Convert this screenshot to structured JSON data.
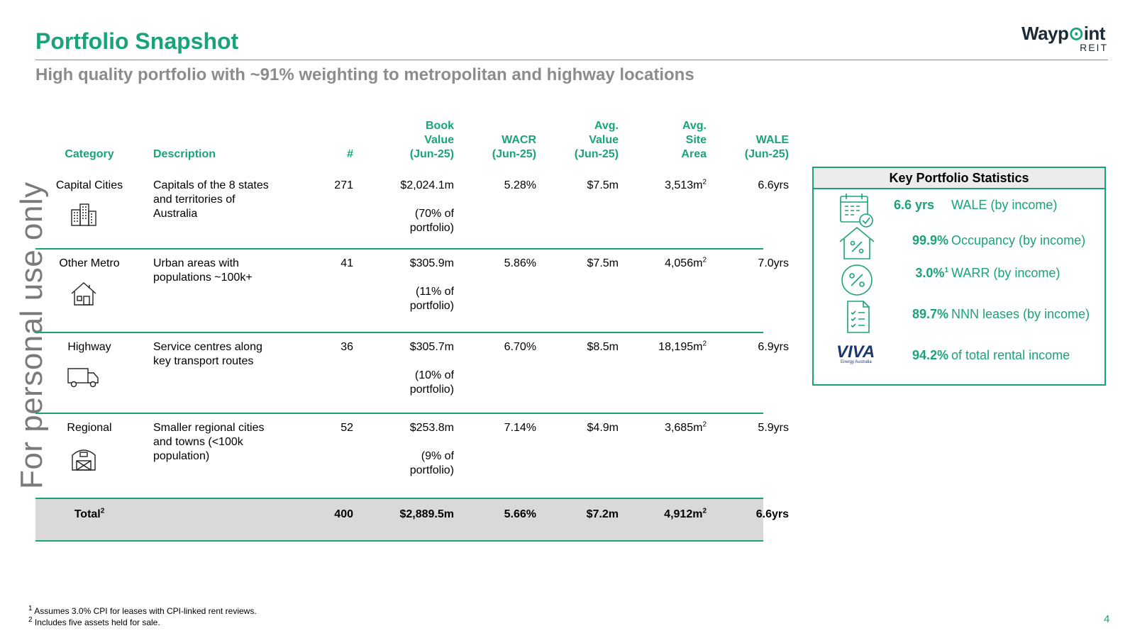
{
  "header": {
    "title": "Portfolio Snapshot",
    "subtitle": "High quality portfolio with ~91% weighting to metropolitan and highway locations"
  },
  "logo": {
    "word_a": "Wayp",
    "word_b": "int",
    "sub": "REIT",
    "accent_color": "#1aa37a"
  },
  "watermark": "For personal use only",
  "table": {
    "headers": {
      "category": "Category",
      "description": "Description",
      "count": "#",
      "book_value": [
        "Book",
        "Value",
        "(Jun-25)"
      ],
      "wacr": [
        "WACR",
        "(Jun-25)"
      ],
      "avg_value": [
        "Avg.",
        "Value",
        "(Jun-25)"
      ],
      "avg_site_area": [
        "Avg.",
        "Site",
        "Area"
      ],
      "wale": [
        "WALE",
        "(Jun-25)"
      ]
    },
    "rows": [
      {
        "category": "Capital Cities",
        "icon": "office-buildings-icon",
        "description": [
          "Capitals of the 8 states",
          "and territories of",
          "Australia"
        ],
        "count": "271",
        "book_value": "$2,024.1m",
        "book_share": [
          "(70% of",
          "portfolio)"
        ],
        "wacr": "5.28%",
        "avg_value": "$7.5m",
        "avg_site_area": "3,513m",
        "wale": "6.6yrs"
      },
      {
        "category": "Other Metro",
        "icon": "house-icon",
        "description": [
          "Urban areas with",
          "populations ~100k+"
        ],
        "count": "41",
        "book_value": "$305.9m",
        "book_share": [
          "(11% of",
          "portfolio)"
        ],
        "wacr": "5.86%",
        "avg_value": "$7.5m",
        "avg_site_area": "4,056m",
        "wale": "7.0yrs"
      },
      {
        "category": "Highway",
        "icon": "truck-icon",
        "description": [
          "Service centres along",
          "key transport routes"
        ],
        "count": "36",
        "book_value": "$305.7m",
        "book_share": [
          "(10% of",
          "portfolio)"
        ],
        "wacr": "6.70%",
        "avg_value": "$8.5m",
        "avg_site_area": "18,195m",
        "wale": "6.9yrs"
      },
      {
        "category": "Regional",
        "icon": "barn-icon",
        "description": [
          "Smaller regional cities",
          "and towns (<100k",
          "population)"
        ],
        "count": "52",
        "book_value": "$253.8m",
        "book_share": [
          "(9% of",
          "portfolio)"
        ],
        "wacr": "7.14%",
        "avg_value": "$4.9m",
        "avg_site_area": "3,685m",
        "wale": "5.9yrs"
      }
    ],
    "area_superscript": "2",
    "total": {
      "label": "Total",
      "label_sup": "2",
      "count": "400",
      "book_value": "$2,889.5m",
      "wacr": "5.66%",
      "avg_value": "$7.2m",
      "avg_site_area": "4,912m",
      "wale": "6.6yrs"
    }
  },
  "key_stats": {
    "title": "Key Portfolio Statistics",
    "items": [
      {
        "icon": "calendar-check-icon",
        "value": "6.6 yrs",
        "sup": "",
        "label": "WALE (by income)"
      },
      {
        "icon": "house-percent-icon",
        "value": "99.9%",
        "sup": "",
        "label": "Occupancy (by income)"
      },
      {
        "icon": "circle-percent-icon",
        "value": "3.0%",
        "sup": "1",
        "label": "WARR (by income)"
      },
      {
        "icon": "checklist-icon",
        "value": "89.7%",
        "sup": "",
        "label": "NNN leases (by income)"
      },
      {
        "icon": "viva-energy-logo",
        "logo_word": "VIVA",
        "logo_sub": "Energy Australia",
        "value": "94.2%",
        "sup": "",
        "label": "of total rental income"
      }
    ]
  },
  "footnotes": [
    {
      "mark": "1",
      "text": "Assumes 3.0% CPI for leases with CPI-linked rent reviews."
    },
    {
      "mark": "2",
      "text": "Includes five assets held for sale."
    }
  ],
  "page_number": "4"
}
